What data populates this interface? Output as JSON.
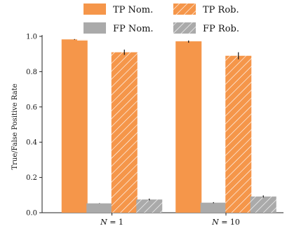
{
  "chart_data": {
    "type": "bar",
    "title": "",
    "xlabel": "",
    "ylabel": "True/False Positive Rate",
    "ylim": [
      0,
      1.0
    ],
    "yticks": [
      "0.0",
      "0.2",
      "0.4",
      "0.6",
      "0.8",
      "1.0"
    ],
    "categories": [
      "N = 1",
      "N = 10"
    ],
    "category_parts": [
      {
        "var": "N",
        "rest": " = 1"
      },
      {
        "var": "N",
        "rest": " = 10"
      }
    ],
    "legend_position": "top-center",
    "grid": false,
    "series": [
      {
        "name": "TP Nom.",
        "values": [
          0.983,
          0.972
        ],
        "errors": [
          0.002,
          0.008
        ],
        "color": "#f5964a",
        "hatch": false
      },
      {
        "name": "FP Nom.",
        "values": [
          0.053,
          0.057
        ],
        "errors": [
          0.001,
          0.003
        ],
        "color": "#aaaaaa",
        "hatch": false
      },
      {
        "name": "TP Rob.",
        "values": [
          0.91,
          0.89
        ],
        "errors": [
          0.015,
          0.02
        ],
        "color": "#f5964a",
        "hatch": true
      },
      {
        "name": "FP Rob.",
        "values": [
          0.075,
          0.092
        ],
        "errors": [
          0.005,
          0.006
        ],
        "color": "#aaaaaa",
        "hatch": true
      }
    ],
    "legend_order": [
      0,
      2,
      1,
      3
    ]
  }
}
